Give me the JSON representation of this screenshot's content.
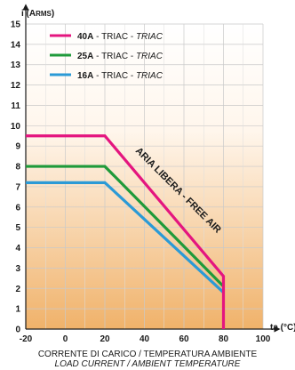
{
  "chart_data": {
    "type": "line",
    "xlabel": "ta (°C)",
    "ylabel": "i (Arms)",
    "ylabel_main": "i (A",
    "ylabel_sub": "RMS",
    "ylabel_close": ")",
    "xlim": [
      -20,
      100
    ],
    "ylim": [
      0,
      15
    ],
    "xticks": [
      -20,
      0,
      20,
      40,
      60,
      80,
      100
    ],
    "yticks": [
      0,
      1,
      2,
      3,
      4,
      5,
      6,
      7,
      8,
      9,
      10,
      11,
      12,
      13,
      14,
      15
    ],
    "grid": true,
    "legend_placement": "top-left",
    "series": [
      {
        "name": "40A - TRIAC - TRIAC",
        "label_bold": "40A",
        "label_rest": " - TRIAC - ",
        "label_italic": "TRIAC",
        "color": "#e4157f",
        "x": [
          -20,
          20,
          80,
          80
        ],
        "y": [
          9.5,
          9.5,
          2.6,
          0
        ]
      },
      {
        "name": "25A - TRIAC - TRIAC",
        "label_bold": "25A",
        "label_rest": " - TRIAC - ",
        "label_italic": "TRIAC",
        "color": "#1f9a3a",
        "x": [
          -20,
          20,
          80
        ],
        "y": [
          8.0,
          8.0,
          2.1
        ]
      },
      {
        "name": "16A - TRIAC - TRIAC",
        "label_bold": "16A",
        "label_rest": " - TRIAC - ",
        "label_italic": "TRIAC",
        "color": "#2b9ad6",
        "x": [
          -20,
          20,
          80
        ],
        "y": [
          7.2,
          7.2,
          1.8
        ]
      }
    ],
    "annotation": "ARIA LIBERA - FREE AIR",
    "caption_line1": "CORRENTE DI CARICO / TEMPERATURA AMBIENTE",
    "caption_line2": "LOAD CURRENT / AMBIENT TEMPERATURE",
    "background_gradient": [
      "#ffffff",
      "#f0b26a"
    ]
  }
}
